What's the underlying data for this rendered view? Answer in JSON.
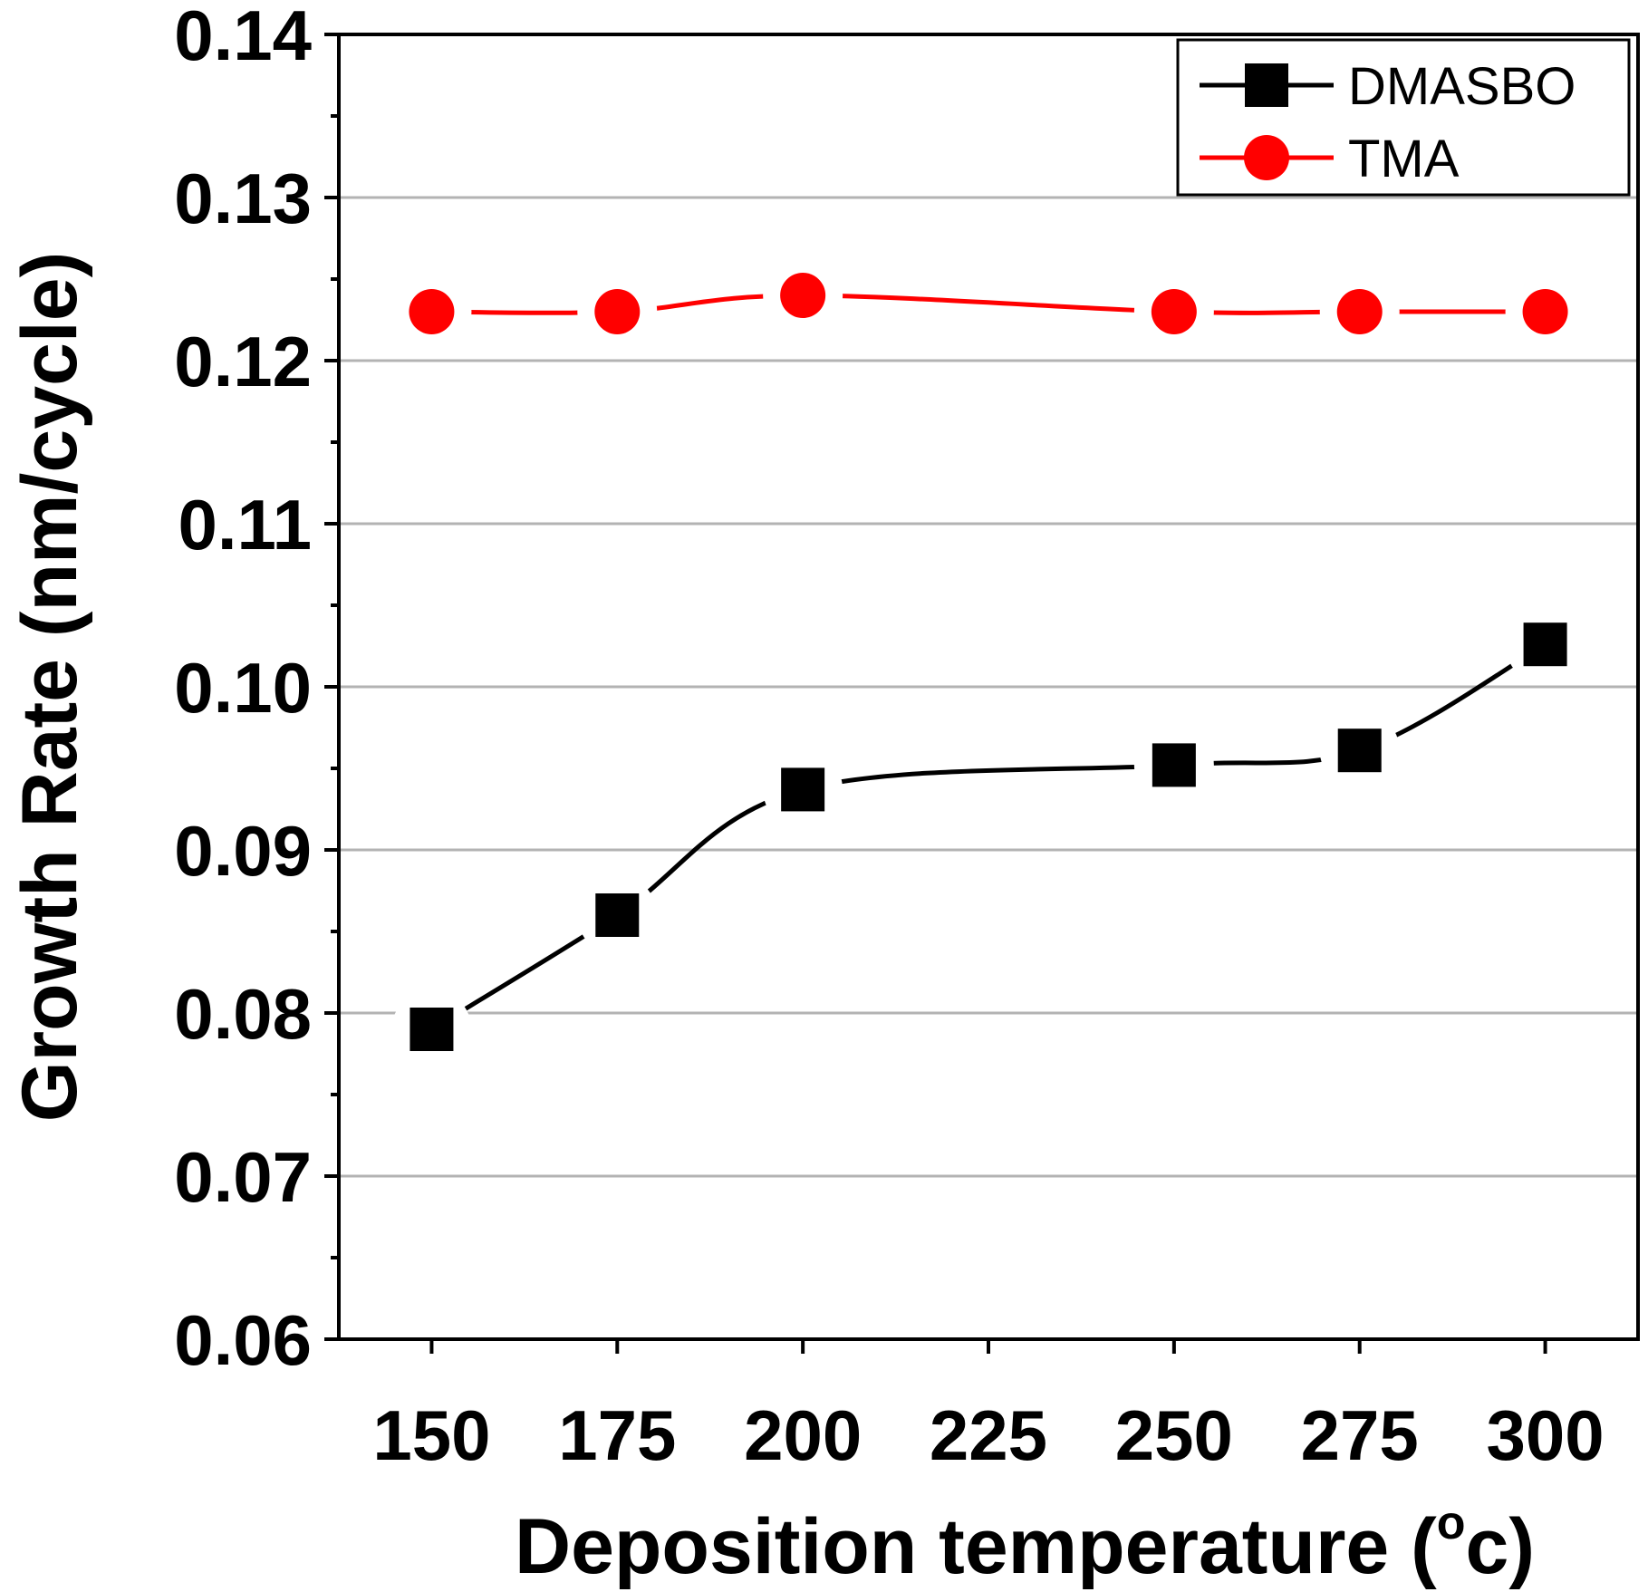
{
  "chart_data": {
    "type": "line",
    "title": "",
    "xlabel": "Deposition temperature (",
    "xlabel_degree_symbol": "o",
    "xlabel_unit_suffix": "c)",
    "ylabel": "Growth Rate (nm/cycle)",
    "xlim": [
      137.5,
      312.5
    ],
    "ylim": [
      0.06,
      0.14
    ],
    "x_ticks": [
      150,
      175,
      200,
      225,
      250,
      275,
      300
    ],
    "x_tick_labels": [
      "150",
      "175",
      "200",
      "225",
      "250",
      "275",
      "300"
    ],
    "y_ticks": [
      0.06,
      0.07,
      0.08,
      0.09,
      0.1,
      0.11,
      0.12,
      0.13,
      0.14
    ],
    "y_tick_labels": [
      "0.06",
      "0.07",
      "0.08",
      "0.09",
      "0.10",
      "0.11",
      "0.12",
      "0.13",
      "0.14"
    ],
    "grid": true,
    "legend_position": "top-right",
    "series": [
      {
        "name": "DMASBO",
        "marker": "square",
        "color": "#000000",
        "x": [
          150,
          175,
          200,
          250,
          275,
          300
        ],
        "values": [
          0.079,
          0.086,
          0.0937,
          0.0952,
          0.0961,
          0.1026
        ]
      },
      {
        "name": "TMA",
        "marker": "circle",
        "color": "#ff0000",
        "x": [
          150,
          175,
          200,
          250,
          275,
          300
        ],
        "values": [
          0.123,
          0.123,
          0.124,
          0.123,
          0.123,
          0.123
        ]
      }
    ]
  }
}
